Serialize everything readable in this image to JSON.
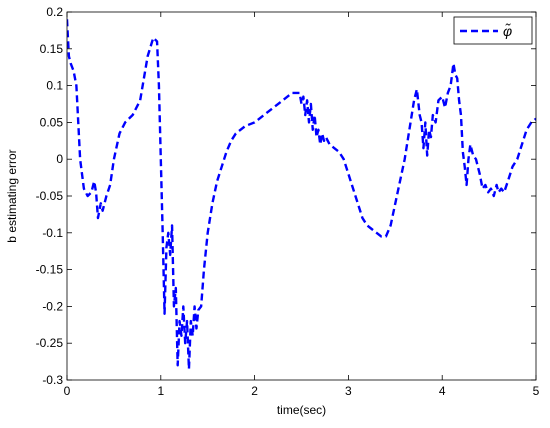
{
  "chart_data": {
    "type": "line",
    "title": "",
    "xlabel": "time(sec)",
    "ylabel": "b estimating error",
    "xlim": [
      0,
      5
    ],
    "ylim": [
      -0.3,
      0.2
    ],
    "xticks": [
      0,
      1,
      2,
      3,
      4,
      5
    ],
    "xtick_labels": [
      "0",
      "1",
      "2",
      "3",
      "4",
      "5"
    ],
    "yticks": [
      0.2,
      0.15,
      0.1,
      0.05,
      0,
      -0.05,
      -0.1,
      -0.15,
      -0.2,
      -0.25,
      -0.3
    ],
    "ytick_labels": [
      "0.2",
      "0.15",
      "0.1",
      "0.05",
      "0",
      "-0.05",
      "-0.1",
      "-0.15",
      "-0.2",
      "-0.25",
      "-0.3"
    ],
    "grid": false,
    "legend_position": "top-right",
    "series": [
      {
        "name": "φ̃",
        "color": "#0000ff",
        "line_style": "dashed",
        "x": [
          0.0,
          0.02,
          0.04,
          0.07,
          0.1,
          0.14,
          0.18,
          0.22,
          0.26,
          0.29,
          0.31,
          0.33,
          0.36,
          0.38,
          0.42,
          0.46,
          0.5,
          0.56,
          0.62,
          0.7,
          0.78,
          0.86,
          0.92,
          0.96,
          0.98,
          1.0,
          1.02,
          1.04,
          1.06,
          1.08,
          1.1,
          1.12,
          1.14,
          1.16,
          1.18,
          1.2,
          1.22,
          1.24,
          1.26,
          1.28,
          1.3,
          1.32,
          1.34,
          1.36,
          1.38,
          1.4,
          1.43,
          1.46,
          1.5,
          1.55,
          1.6,
          1.65,
          1.7,
          1.75,
          1.8,
          1.9,
          2.0,
          2.1,
          2.2,
          2.3,
          2.4,
          2.48,
          2.5,
          2.52,
          2.54,
          2.56,
          2.58,
          2.6,
          2.62,
          2.64,
          2.66,
          2.68,
          2.7,
          2.72,
          2.74,
          2.76,
          2.78,
          2.8,
          2.85,
          2.9,
          2.95,
          3.0,
          3.05,
          3.1,
          3.15,
          3.2,
          3.25,
          3.3,
          3.35,
          3.4,
          3.45,
          3.5,
          3.55,
          3.6,
          3.65,
          3.7,
          3.73,
          3.76,
          3.78,
          3.8,
          3.82,
          3.84,
          3.86,
          3.88,
          3.9,
          3.93,
          3.96,
          4.0,
          4.03,
          4.06,
          4.09,
          4.12,
          4.14,
          4.16,
          4.18,
          4.2,
          4.22,
          4.24,
          4.26,
          4.28,
          4.3,
          4.33,
          4.36,
          4.4,
          4.43,
          4.46,
          4.49,
          4.52,
          4.55,
          4.58,
          4.6,
          4.63,
          4.66,
          4.7,
          4.75,
          4.8,
          4.85,
          4.9,
          4.95,
          5.0
        ],
        "y": [
          0.19,
          0.14,
          0.13,
          0.12,
          0.1,
          0.0,
          -0.04,
          -0.05,
          -0.045,
          -0.03,
          -0.045,
          -0.08,
          -0.06,
          -0.07,
          -0.05,
          -0.035,
          0.0,
          0.035,
          0.05,
          0.06,
          0.08,
          0.14,
          0.165,
          0.16,
          0.1,
          0.0,
          -0.1,
          -0.21,
          -0.12,
          -0.1,
          -0.13,
          -0.09,
          -0.2,
          -0.175,
          -0.28,
          -0.22,
          -0.24,
          -0.2,
          -0.25,
          -0.22,
          -0.285,
          -0.22,
          -0.24,
          -0.2,
          -0.23,
          -0.205,
          -0.2,
          -0.15,
          -0.1,
          -0.06,
          -0.03,
          -0.01,
          0.01,
          0.025,
          0.035,
          0.045,
          0.05,
          0.06,
          0.07,
          0.08,
          0.09,
          0.09,
          0.075,
          0.085,
          0.06,
          0.08,
          0.05,
          0.075,
          0.04,
          0.06,
          0.03,
          0.04,
          0.02,
          0.035,
          0.025,
          0.03,
          0.025,
          0.02,
          0.015,
          0.01,
          0.0,
          -0.02,
          -0.04,
          -0.06,
          -0.08,
          -0.09,
          -0.095,
          -0.1,
          -0.105,
          -0.105,
          -0.09,
          -0.06,
          -0.03,
          0.0,
          0.04,
          0.08,
          0.095,
          0.06,
          0.05,
          0.015,
          0.05,
          0.005,
          0.04,
          0.03,
          0.06,
          0.05,
          0.08,
          0.085,
          0.07,
          0.09,
          0.1,
          0.13,
          0.115,
          0.11,
          0.08,
          0.06,
          0.01,
          -0.01,
          -0.035,
          0.0,
          0.02,
          0.005,
          0.0,
          -0.02,
          -0.04,
          -0.035,
          -0.045,
          -0.04,
          -0.05,
          -0.035,
          -0.045,
          -0.04,
          -0.045,
          -0.03,
          -0.01,
          0.0,
          0.02,
          0.04,
          0.05,
          0.055
        ]
      }
    ]
  }
}
